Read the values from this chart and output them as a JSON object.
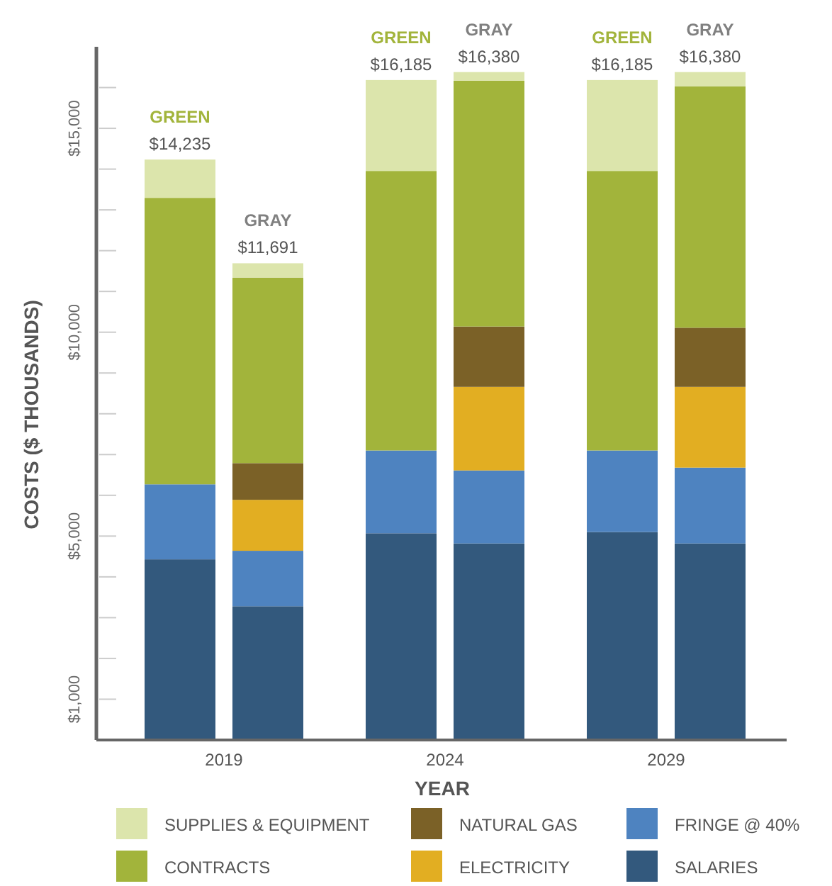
{
  "chart_data": {
    "type": "bar",
    "stacked": true,
    "xlabel": "YEAR",
    "ylabel": "COSTS ($ THOUSANDS)",
    "categories": [
      "GREEN",
      "GRAY",
      "GREEN",
      "GRAY",
      "GREEN",
      "GRAY"
    ],
    "series": [
      {
        "name": "SALARIES",
        "color": "#33597d",
        "values": [
          4430,
          3280,
          5070,
          4820,
          5100,
          4820
        ]
      },
      {
        "name": "FRINGE @ 40%",
        "color": "#4e83c0",
        "values": [
          1840,
          1360,
          2030,
          1790,
          2000,
          1860
        ]
      },
      {
        "name": "ELECTRICITY",
        "color": "#e2ae22",
        "values": [
          0,
          1250,
          0,
          2050,
          0,
          1980
        ]
      },
      {
        "name": "NATURAL GAS",
        "color": "#7b6127",
        "values": [
          0,
          900,
          0,
          1480,
          0,
          1450
        ]
      },
      {
        "name": "CONTRACTS",
        "color": "#a2b43b",
        "values": [
          7025,
          4551,
          6855,
          6030,
          6855,
          5920
        ]
      },
      {
        "name": "SUPPLIES & EQUIPMENT",
        "color": "#dce5ac",
        "values": [
          940,
          350,
          2230,
          210,
          2230,
          350
        ]
      }
    ],
    "totals": [
      "$14,235",
      "$11,691",
      "$16,185",
      "$16,380",
      "$16,185",
      "$16,380"
    ],
    "annotations": [
      "2019",
      "2024",
      "2029"
    ],
    "ylim": [
      0,
      17000
    ],
    "yticks": [
      {
        "value": 1000,
        "label": "$1,000"
      },
      {
        "value": 2000,
        "label": null
      },
      {
        "value": 3000,
        "label": null
      },
      {
        "value": 4000,
        "label": null
      },
      {
        "value": 5000,
        "label": "$5,000"
      },
      {
        "value": 6000,
        "label": null
      },
      {
        "value": 7000,
        "label": null
      },
      {
        "value": 8000,
        "label": null
      },
      {
        "value": 9000,
        "label": null
      },
      {
        "value": 10000,
        "label": "$10,000"
      },
      {
        "value": 11000,
        "label": null
      },
      {
        "value": 12000,
        "label": null
      },
      {
        "value": 13000,
        "label": null
      },
      {
        "value": 14000,
        "label": null
      },
      {
        "value": 15000,
        "label": "$15,000"
      },
      {
        "value": 16000,
        "label": null
      }
    ],
    "grid": false,
    "legend": "bottom"
  }
}
